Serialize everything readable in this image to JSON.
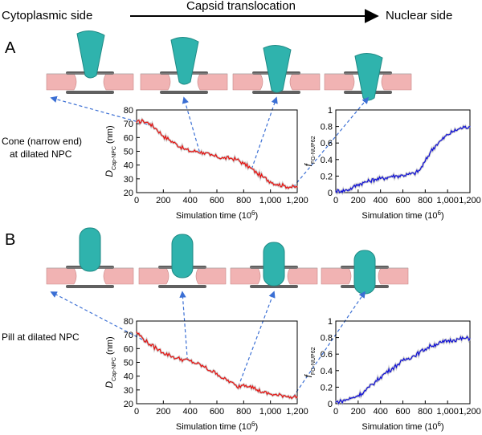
{
  "header": {
    "left": "Cytoplasmic side",
    "center": "Capsid translocation",
    "right": "Nuclear side"
  },
  "panels": [
    {
      "letter": "A",
      "condition_line1": "Cone (narrow end)",
      "condition_line2": "at dilated NPC",
      "snapshot_count": 4,
      "snapshot_shape": "cone"
    },
    {
      "letter": "B",
      "condition_line1": "Pill at dilated NPC",
      "condition_line2": "",
      "snapshot_count": 4,
      "snapshot_shape": "pill"
    }
  ],
  "colors": {
    "distance_series": "#e8100e",
    "fraction_series": "#1010d8",
    "arrows": "#3b6fd4",
    "capsid": "#2fb3ad",
    "membrane": "#f1b3b3",
    "nups": "#444444"
  },
  "chart_data": [
    {
      "id": "A-distance",
      "type": "line",
      "xlabel": "Simulation time (10",
      "xlabel_sup": "6",
      "xlabel_end": ")",
      "ylabel_main": "D",
      "ylabel_sub": "Cap-NPC",
      "ylabel_end": " (nm)",
      "xlim": [
        0,
        1200
      ],
      "ylim": [
        20,
        80
      ],
      "xticks": [
        "0",
        "200",
        "400",
        "600",
        "800",
        "1,000",
        "1,200"
      ],
      "yticks": [
        "20",
        "30",
        "40",
        "50",
        "60",
        "70",
        "80"
      ],
      "series": [
        {
          "color": "#e8100e",
          "x": [
            0,
            50,
            100,
            150,
            200,
            250,
            300,
            350,
            400,
            450,
            500,
            550,
            600,
            650,
            700,
            750,
            800,
            850,
            900,
            950,
            1000,
            1050,
            1100,
            1150,
            1200
          ],
          "y": [
            71,
            72,
            70,
            66,
            61,
            58,
            55,
            52,
            50,
            50,
            49,
            47,
            46,
            45,
            45,
            44,
            41,
            38,
            34,
            31,
            28,
            26,
            25,
            24,
            24
          ]
        }
      ],
      "snapshot_times": [
        120,
        470,
        860,
        1170
      ]
    },
    {
      "id": "A-fraction",
      "type": "line",
      "xlabel": "Simulation time (10",
      "xlabel_sup": "6",
      "xlabel_end": ")",
      "ylabel_main": "f",
      "ylabel_sub": "FG-NUP62",
      "ylabel_end": "",
      "xlim": [
        0,
        1200
      ],
      "ylim": [
        0,
        1
      ],
      "xticks": [
        "0",
        "200",
        "400",
        "600",
        "800",
        "1,000",
        "1,200"
      ],
      "yticks": [
        "0",
        "0.2",
        "0.4",
        "0.6",
        "0.8",
        "1"
      ],
      "series": [
        {
          "color": "#1010d8",
          "x": [
            0,
            50,
            100,
            150,
            200,
            250,
            300,
            350,
            400,
            450,
            500,
            550,
            600,
            650,
            700,
            750,
            800,
            850,
            900,
            950,
            1000,
            1050,
            1100,
            1150,
            1200
          ],
          "y": [
            0.02,
            0.02,
            0.03,
            0.06,
            0.1,
            0.12,
            0.14,
            0.16,
            0.17,
            0.18,
            0.2,
            0.2,
            0.21,
            0.22,
            0.23,
            0.27,
            0.38,
            0.5,
            0.58,
            0.64,
            0.7,
            0.74,
            0.77,
            0.79,
            0.8
          ]
        }
      ]
    },
    {
      "id": "B-distance",
      "type": "line",
      "xlabel": "Simulation time (10",
      "xlabel_sup": "6",
      "xlabel_end": ")",
      "ylabel_main": "D",
      "ylabel_sub": "Cap-NPC",
      "ylabel_end": " (nm)",
      "xlim": [
        0,
        1200
      ],
      "ylim": [
        20,
        80
      ],
      "xticks": [
        "0",
        "200",
        "400",
        "600",
        "800",
        "1,000",
        "1,200"
      ],
      "yticks": [
        "20",
        "30",
        "40",
        "50",
        "60",
        "70",
        "80"
      ],
      "series": [
        {
          "color": "#e8100e",
          "x": [
            0,
            50,
            100,
            150,
            200,
            250,
            300,
            350,
            400,
            450,
            500,
            550,
            600,
            650,
            700,
            750,
            800,
            850,
            900,
            950,
            1000,
            1050,
            1100,
            1150,
            1200
          ],
          "y": [
            72,
            67,
            63,
            60,
            57,
            55,
            53,
            52,
            51,
            49,
            47,
            44,
            42,
            38,
            36,
            32,
            34,
            33,
            30,
            28,
            27,
            26,
            26,
            25,
            25
          ]
        }
      ],
      "snapshot_times": [
        80,
        380,
        760,
        1170
      ]
    },
    {
      "id": "B-fraction",
      "type": "line",
      "xlabel": "Simulation time (10",
      "xlabel_sup": "6",
      "xlabel_end": ")",
      "ylabel_main": "f",
      "ylabel_sub": "FG-NUP62",
      "ylabel_end": "",
      "xlim": [
        0,
        1200
      ],
      "ylim": [
        0,
        1
      ],
      "xticks": [
        "0",
        "200",
        "400",
        "600",
        "800",
        "1,000",
        "1,200"
      ],
      "yticks": [
        "0",
        "0.2",
        "0.4",
        "0.6",
        "0.8",
        "1"
      ],
      "series": [
        {
          "color": "#1010d8",
          "x": [
            0,
            50,
            100,
            150,
            200,
            250,
            300,
            350,
            400,
            450,
            500,
            550,
            600,
            650,
            700,
            750,
            800,
            850,
            900,
            950,
            1000,
            1050,
            1100,
            1150,
            1200
          ],
          "y": [
            0.02,
            0.03,
            0.05,
            0.07,
            0.1,
            0.14,
            0.2,
            0.26,
            0.32,
            0.38,
            0.42,
            0.47,
            0.52,
            0.55,
            0.58,
            0.62,
            0.66,
            0.7,
            0.72,
            0.74,
            0.76,
            0.77,
            0.78,
            0.79,
            0.79
          ]
        }
      ]
    }
  ]
}
